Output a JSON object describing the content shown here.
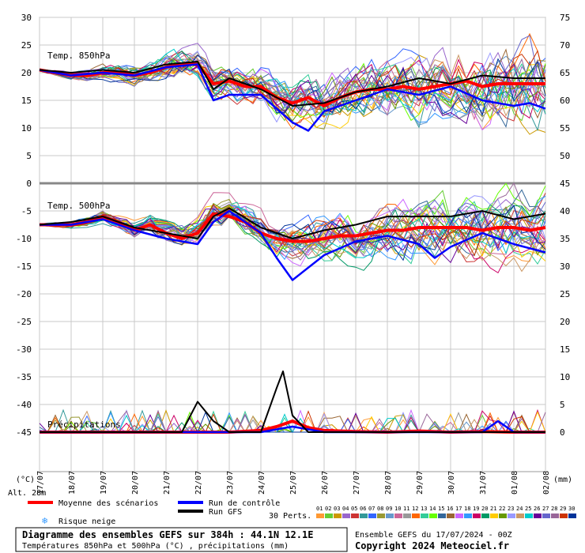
{
  "chart_data": {
    "type": "line",
    "title": "Diagramme des ensembles GEFS sur 384h : 44.1N 12.1E",
    "subtitle": "Températures 850hPa et 500hPa (°C) , précipitations (mm)",
    "run_info": "Ensemble GEFS du 17/07/2024 - 00Z",
    "copyright": "Copyright 2024 Meteociel.fr",
    "altitude": "Alt. 28m",
    "left_unit": "(°C)",
    "right_unit": "(mm)",
    "grid": true,
    "x_ticks": [
      "17/07",
      "18/07",
      "19/07",
      "20/07",
      "21/07",
      "22/07",
      "23/07",
      "24/07",
      "25/07",
      "26/07",
      "27/07",
      "28/07",
      "29/07",
      "30/07",
      "31/07",
      "01/08",
      "02/08"
    ],
    "x_range_days": [
      0,
      16
    ],
    "left_axis_ticks": [
      30,
      25,
      20,
      15,
      10,
      5,
      0,
      -5,
      -10,
      -15,
      -20,
      -25,
      -30,
      -35,
      -40,
      -45
    ],
    "right_axis_ticks": [
      75,
      70,
      65,
      60,
      55,
      50,
      45,
      40,
      35,
      30,
      25,
      20,
      15,
      10,
      5,
      0
    ],
    "panels": [
      {
        "label": "Temp. 850hPa",
        "ylim": [
          0,
          30
        ],
        "unit": "°C"
      },
      {
        "label": "Temp. 500hPa",
        "ylim": [
          -45,
          0
        ],
        "unit": "°C"
      },
      {
        "label": "Précipitations",
        "ylim": [
          0,
          18
        ],
        "unit": "mm"
      }
    ],
    "series": [
      {
        "name": "Moyenne des scénarios",
        "color": "#ff0000",
        "panel": "Temp. 850hPa",
        "x": [
          0,
          0.5,
          1,
          1.5,
          2,
          2.5,
          3,
          3.5,
          4,
          4.5,
          5,
          5.5,
          6,
          6.5,
          7,
          7.5,
          8,
          8.5,
          9,
          9.5,
          10,
          10.5,
          11,
          11.5,
          12,
          12.5,
          13,
          13.5,
          14,
          14.5,
          15,
          15.5,
          16
        ],
        "values": [
          20.5,
          20,
          19.5,
          19.5,
          20,
          20,
          19.5,
          20,
          21,
          21.5,
          21.5,
          18,
          18.5,
          17.5,
          17.5,
          15.5,
          14.5,
          15.5,
          14,
          15.5,
          16.5,
          17,
          17,
          17.5,
          17,
          17.5,
          18,
          18.5,
          17.5,
          18,
          18,
          18,
          18
        ]
      },
      {
        "name": "Run de contrôle",
        "color": "#0000ff",
        "panel": "Temp. 850hPa",
        "x": [
          0,
          1,
          2,
          3,
          4,
          5,
          5.5,
          6,
          7,
          8,
          8.5,
          9,
          10,
          11,
          12,
          13,
          14,
          15,
          15.5,
          16
        ],
        "values": [
          20.5,
          19.5,
          20,
          19.5,
          21,
          21.5,
          15,
          16,
          16,
          11,
          9.5,
          13,
          15,
          17,
          16,
          17.5,
          15,
          14,
          14.5,
          13.5
        ]
      },
      {
        "name": "Run GFS",
        "color": "#000000",
        "panel": "Temp. 850hPa",
        "x": [
          0,
          1,
          2,
          3,
          4,
          5,
          5.5,
          6,
          7,
          8,
          9,
          10,
          11,
          12,
          13,
          14,
          15,
          16
        ],
        "values": [
          20.5,
          20,
          20.5,
          20,
          21.5,
          22,
          17,
          19,
          17,
          14,
          14.5,
          16.5,
          17.5,
          19,
          18,
          19.5,
          19,
          19
        ]
      },
      {
        "name": "Moyenne des scénarios",
        "color": "#ff0000",
        "panel": "Temp. 500hPa",
        "x": [
          0,
          0.5,
          1,
          1.5,
          2,
          2.5,
          3,
          3.5,
          4,
          4.5,
          5,
          5.5,
          6,
          6.5,
          7,
          7.5,
          8,
          8.5,
          9,
          9.5,
          10,
          10.5,
          11,
          11.5,
          12,
          12.5,
          13,
          13.5,
          14,
          14.5,
          15,
          15.5,
          16
        ],
        "values": [
          -7.5,
          -7.5,
          -7.5,
          -7,
          -6,
          -7,
          -8.5,
          -7.5,
          -9,
          -10,
          -9,
          -5.5,
          -6,
          -7,
          -9,
          -10,
          -10.5,
          -10.5,
          -10,
          -9.5,
          -9.5,
          -9,
          -8.5,
          -8.5,
          -8,
          -8,
          -8,
          -8,
          -8.5,
          -8,
          -8,
          -8.5,
          -8
        ]
      },
      {
        "name": "Run de contrôle",
        "color": "#0000ff",
        "panel": "Temp. 500hPa",
        "x": [
          0,
          1,
          2,
          3,
          4,
          5,
          5.5,
          6,
          7,
          7.5,
          8,
          9,
          10,
          11,
          12,
          12.5,
          13,
          14,
          15,
          16
        ],
        "values": [
          -7.5,
          -7.5,
          -6.5,
          -8.5,
          -10,
          -11,
          -7,
          -5,
          -9,
          -13.5,
          -17.5,
          -13,
          -10.5,
          -9.5,
          -11,
          -13.5,
          -11.5,
          -9,
          -11,
          -12.5
        ]
      },
      {
        "name": "Run GFS",
        "color": "#000000",
        "panel": "Temp. 500hPa",
        "x": [
          0,
          1,
          2,
          3,
          4,
          5,
          5.5,
          6,
          7,
          8,
          9,
          10,
          11,
          12,
          13,
          14,
          15,
          16
        ],
        "values": [
          -7.5,
          -7,
          -6,
          -8,
          -9,
          -10,
          -6,
          -4.5,
          -8,
          -10,
          -8.5,
          -7.5,
          -6,
          -6,
          -6,
          -5,
          -6.5,
          -5.5
        ]
      },
      {
        "name": "Moyenne des scénarios",
        "color": "#ff0000",
        "panel": "Précipitations",
        "x": [
          0,
          1,
          2,
          3,
          4,
          5,
          6,
          7,
          7.5,
          8,
          8.5,
          9,
          10,
          11,
          12,
          13,
          14,
          15,
          16
        ],
        "values": [
          0,
          0,
          0,
          0,
          0,
          0,
          0,
          0.3,
          1,
          2,
          0.8,
          0.3,
          0.1,
          0,
          0.2,
          0,
          0.1,
          0,
          0
        ]
      },
      {
        "name": "Run de contrôle",
        "color": "#0000ff",
        "panel": "Précipitations",
        "x": [
          0,
          5,
          7,
          7.5,
          8,
          9,
          14,
          14.5,
          15,
          16
        ],
        "values": [
          0,
          0,
          0,
          0.5,
          1,
          0,
          0,
          2,
          0,
          0
        ]
      },
      {
        "name": "Run GFS",
        "color": "#000000",
        "panel": "Précipitations",
        "x": [
          0,
          4.5,
          5,
          5.5,
          6,
          7,
          7.5,
          7.7,
          8,
          8.5,
          9,
          16
        ],
        "values": [
          0,
          0,
          5.5,
          2,
          0,
          0,
          8,
          11,
          3,
          0,
          0,
          0
        ]
      }
    ],
    "legend": {
      "items": [
        "Moyenne des scénarios",
        "Run de contrôle",
        "Run GFS",
        "Risque neige"
      ],
      "perts_label": "30 Perts.",
      "perts": [
        "01",
        "02",
        "03",
        "04",
        "05",
        "06",
        "07",
        "08",
        "09",
        "10",
        "11",
        "12",
        "13",
        "14",
        "15",
        "16",
        "17",
        "18",
        "19",
        "20",
        "21",
        "22",
        "23",
        "24",
        "25",
        "26",
        "27",
        "28",
        "29",
        "30"
      ],
      "perts_colors": [
        "#ff9933",
        "#66cc33",
        "#cc9900",
        "#9966cc",
        "#cc3333",
        "#339999",
        "#3366ff",
        "#999933",
        "#6699cc",
        "#cc6699",
        "#999999",
        "#ff6600",
        "#33cc99",
        "#66ff00",
        "#336699",
        "#996633",
        "#cc66ff",
        "#3399ff",
        "#cc0066",
        "#009966",
        "#ffcc00",
        "#669900",
        "#9999ff",
        "#cc9966",
        "#00cccc",
        "#660099",
        "#6666cc",
        "#996699",
        "#cc3300",
        "#003399"
      ]
    }
  }
}
